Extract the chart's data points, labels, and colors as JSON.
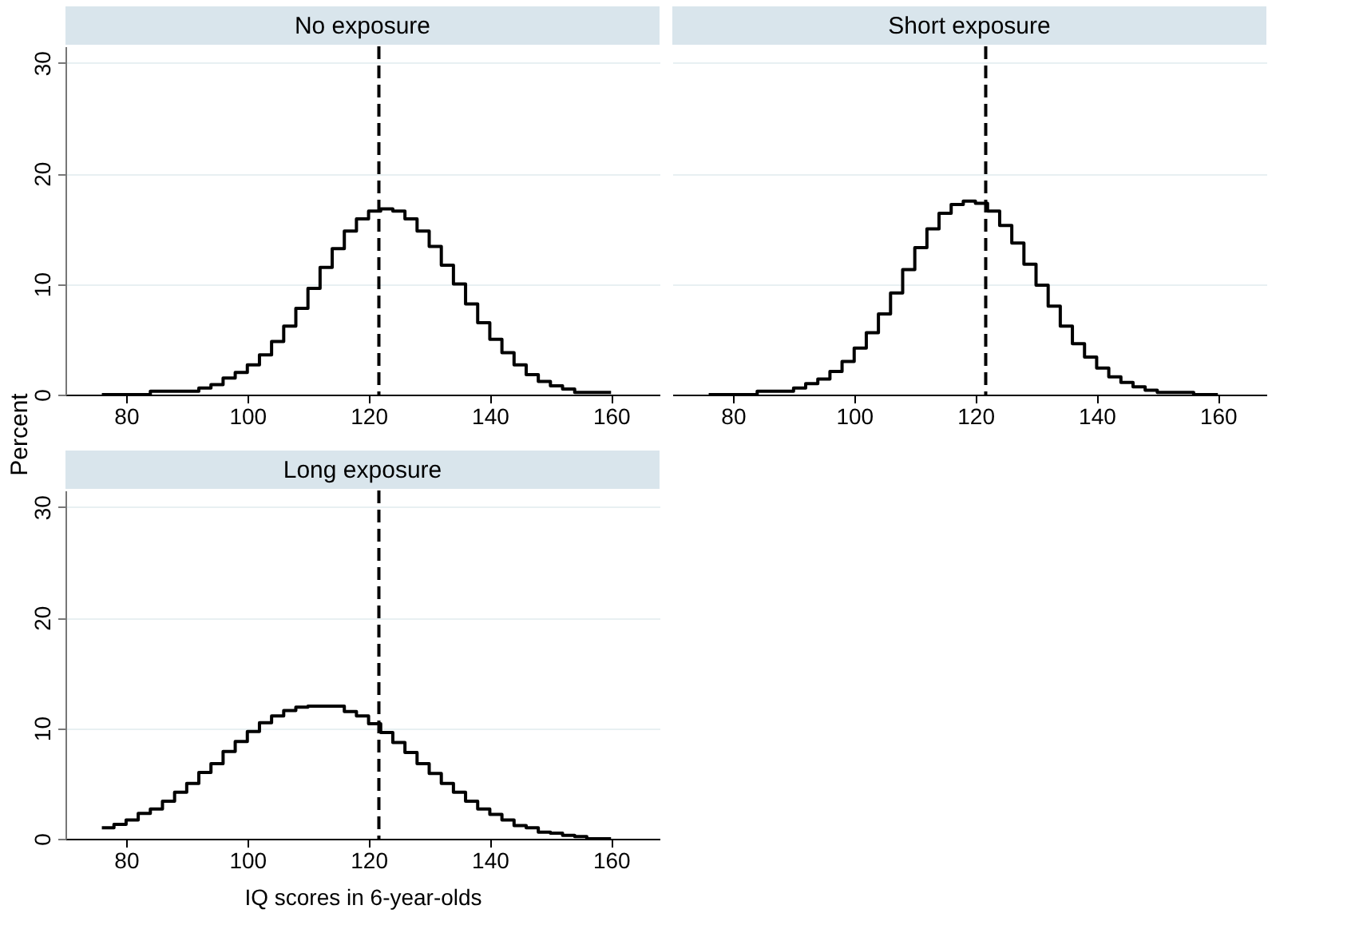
{
  "chart_data": [
    {
      "type": "step",
      "title": "No exposure",
      "ylabel": "Percent",
      "xlim": [
        70,
        168
      ],
      "xticks": [
        80,
        100,
        120,
        140,
        160
      ],
      "ylim": [
        0,
        31.5
      ],
      "yticks": [
        0,
        10,
        20,
        30
      ],
      "grid": "y",
      "line_style": "solid",
      "x": [
        76,
        78,
        80,
        82,
        84,
        86,
        88,
        90,
        92,
        94,
        96,
        98,
        100,
        102,
        104,
        106,
        108,
        110,
        112,
        114,
        116,
        118,
        120,
        122,
        124,
        126,
        128,
        130,
        132,
        134,
        136,
        138,
        140,
        142,
        144,
        146,
        148,
        150,
        152,
        154,
        156,
        158,
        160
      ],
      "series": [
        {
          "color": "#000000",
          "values": [
            0,
            0,
            0,
            0,
            0.3,
            0.3,
            0.3,
            0.3,
            0.6,
            0.9,
            1.5,
            2.0,
            2.7,
            3.6,
            4.8,
            6.2,
            7.8,
            9.6,
            11.5,
            13.2,
            14.8,
            15.9,
            16.6,
            16.8,
            16.6,
            15.9,
            14.8,
            13.4,
            11.7,
            10.0,
            8.2,
            6.5,
            5.0,
            3.8,
            2.7,
            1.8,
            1.2,
            0.8,
            0.5,
            0.2,
            0.2,
            0.2,
            0.2
          ]
        }
      ],
      "ref_lines": [
        {
          "axis": "x",
          "value": 121.7,
          "color": "#000000",
          "line_style": "dashed"
        }
      ]
    },
    {
      "type": "step",
      "title": "Short exposure",
      "xlim": [
        70,
        168
      ],
      "xticks": [
        80,
        100,
        120,
        140,
        160
      ],
      "ylim": [
        0,
        31.5
      ],
      "yticks": [
        0,
        10,
        20,
        30
      ],
      "grid": "y",
      "tick_labels": "x",
      "line_style": "solid",
      "x": [
        76,
        78,
        80,
        82,
        84,
        86,
        88,
        90,
        92,
        94,
        96,
        98,
        100,
        102,
        104,
        106,
        108,
        110,
        112,
        114,
        116,
        118,
        120,
        122,
        124,
        126,
        128,
        130,
        132,
        134,
        136,
        138,
        140,
        142,
        144,
        146,
        148,
        150,
        152,
        154,
        156,
        158,
        160
      ],
      "series": [
        {
          "color": "#000000",
          "values": [
            0,
            0,
            0,
            0,
            0.3,
            0.3,
            0.3,
            0.6,
            1.0,
            1.4,
            2.1,
            3.0,
            4.2,
            5.6,
            7.3,
            9.2,
            11.3,
            13.3,
            15.0,
            16.4,
            17.2,
            17.5,
            17.3,
            16.6,
            15.3,
            13.7,
            11.8,
            9.9,
            8.0,
            6.2,
            4.6,
            3.4,
            2.4,
            1.6,
            1.1,
            0.7,
            0.4,
            0.2,
            0.2,
            0.2,
            0,
            0,
            0
          ]
        }
      ],
      "ref_lines": [
        {
          "axis": "x",
          "value": 121.7,
          "color": "#000000",
          "line_style": "dashed"
        }
      ]
    },
    {
      "type": "step",
      "title": "Long exposure",
      "xlabel": "IQ scores in 6-year-olds",
      "xlim": [
        70,
        168
      ],
      "xticks": [
        80,
        100,
        120,
        140,
        160
      ],
      "ylim": [
        0,
        31.5
      ],
      "yticks": [
        0,
        10,
        20,
        30
      ],
      "grid": "y",
      "line_style": "solid",
      "x": [
        76,
        78,
        80,
        82,
        84,
        86,
        88,
        90,
        92,
        94,
        96,
        98,
        100,
        102,
        104,
        106,
        108,
        110,
        112,
        114,
        116,
        118,
        120,
        122,
        124,
        126,
        128,
        130,
        132,
        134,
        136,
        138,
        140,
        142,
        144,
        146,
        148,
        150,
        152,
        154,
        156,
        158,
        160
      ],
      "series": [
        {
          "color": "#000000",
          "values": [
            1.0,
            1.3,
            1.7,
            2.3,
            2.7,
            3.4,
            4.2,
            5.0,
            6.0,
            6.8,
            7.9,
            8.8,
            9.7,
            10.5,
            11.1,
            11.6,
            11.9,
            12.0,
            12.0,
            12.0,
            11.5,
            11.1,
            10.4,
            9.6,
            8.7,
            7.8,
            6.8,
            5.9,
            5.0,
            4.2,
            3.4,
            2.7,
            2.2,
            1.7,
            1.2,
            1.0,
            0.6,
            0.5,
            0.3,
            0.2,
            0,
            0,
            0
          ]
        }
      ],
      "ref_lines": [
        {
          "axis": "x",
          "value": 121.7,
          "color": "#000000",
          "line_style": "dashed"
        }
      ]
    }
  ]
}
